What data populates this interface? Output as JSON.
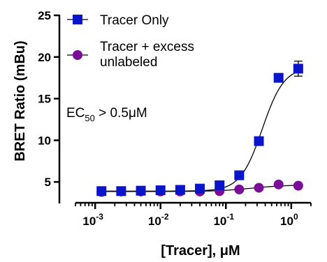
{
  "chart_data": {
    "type": "scatter",
    "xlabel": "[Tracer], μM",
    "ylabel": "BRET Ratio (mBu)",
    "x_scale": "log",
    "xlim": [
      0.0005,
      2
    ],
    "ylim": [
      2.5,
      25
    ],
    "y_ticks": [
      5,
      10,
      15,
      20,
      25
    ],
    "x_ticks": [
      0.001,
      0.01,
      0.1,
      1
    ],
    "x_tick_labels": [
      {
        "base": "10",
        "exp": "-3"
      },
      {
        "base": "10",
        "exp": "-2"
      },
      {
        "base": "10",
        "exp": "-1"
      },
      {
        "base": "10",
        "exp": "0"
      }
    ],
    "legend_placement": "top-left",
    "grid": false,
    "annotation": {
      "prefix": "EC",
      "sub": "50",
      "suffix": " > 0.5μM"
    },
    "series": [
      {
        "name": "Tracer Only",
        "marker": "square",
        "color": "#0a14c8",
        "x": [
          0.00125,
          0.0025,
          0.005,
          0.01,
          0.02,
          0.04,
          0.08,
          0.16,
          0.32,
          0.64,
          1.28
        ],
        "y": [
          3.9,
          3.9,
          3.95,
          4.0,
          4.05,
          4.2,
          4.6,
          5.8,
          9.9,
          17.5,
          18.6
        ],
        "err": [
          0,
          0,
          0,
          0,
          0,
          0,
          0,
          0,
          0,
          0,
          0.9
        ]
      },
      {
        "name": "Tracer + excess unlabeled",
        "marker": "circle",
        "color": "#7a0e96",
        "x": [
          0.00125,
          0.0025,
          0.005,
          0.01,
          0.02,
          0.04,
          0.08,
          0.16,
          0.32,
          0.64,
          1.28
        ],
        "y": [
          3.8,
          3.85,
          3.85,
          3.85,
          3.85,
          3.85,
          3.9,
          4.1,
          4.3,
          4.7,
          4.55
        ],
        "err": [
          0,
          0,
          0,
          0,
          0,
          0,
          0,
          0,
          0,
          0,
          0
        ]
      }
    ],
    "legend": [
      {
        "lines": [
          "Tracer Only"
        ]
      },
      {
        "lines": [
          "Tracer + excess",
          "unlabeled"
        ]
      }
    ]
  }
}
